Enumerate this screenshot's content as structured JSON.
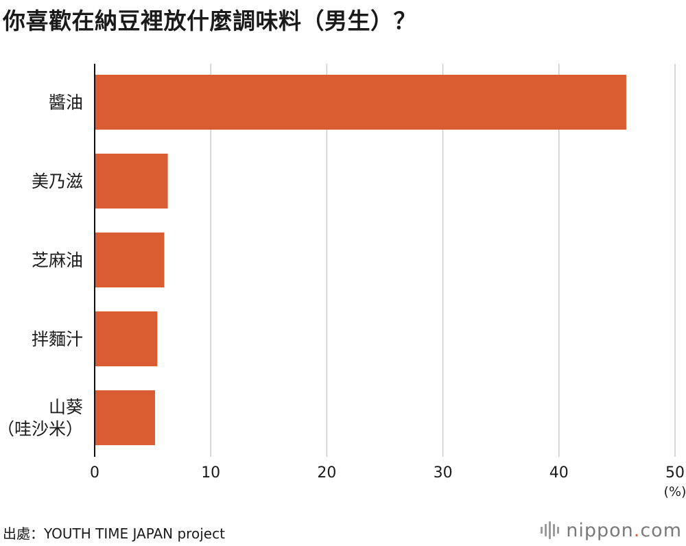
{
  "title": "你喜歡在納豆裡放什麼調味料（男生）？",
  "chart_data": {
    "type": "bar",
    "orientation": "horizontal",
    "title": "你喜歡在納豆裡放什麼調味料（男生）？",
    "categories": [
      "醬油",
      "美乃滋",
      "芝麻油",
      "拌麵汁",
      "山葵\n（哇沙米）"
    ],
    "values": [
      45.8,
      6.3,
      6.0,
      5.4,
      5.2
    ],
    "xlim": [
      0,
      50
    ],
    "ticks": [
      "0",
      "10",
      "20",
      "30",
      "40",
      "50"
    ],
    "tick_values": [
      0,
      10,
      20,
      30,
      40,
      50
    ],
    "unit": "(%)",
    "xlabel": "",
    "ylabel": "",
    "grid": true,
    "bar_color": "#d95c33",
    "grid_color": "#cccccc",
    "axis_color": "#111111"
  },
  "source": "出處：YOUTH TIME JAPAN project",
  "logo": {
    "name": "nippon",
    "dot": ".",
    "suffix": "com",
    "icon": "sound-bars-icon",
    "accent": "#d95c33"
  }
}
